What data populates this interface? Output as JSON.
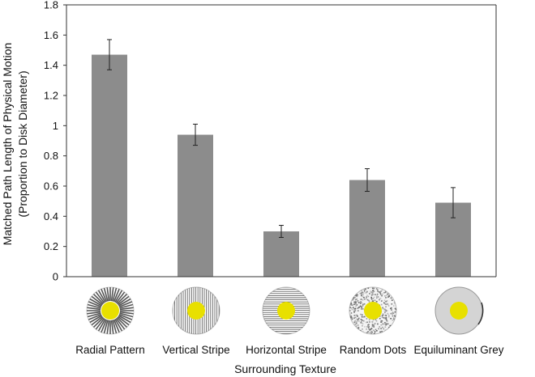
{
  "chart_data": {
    "type": "bar",
    "categories": [
      "Radial Pattern",
      "Vertical Stripe",
      "Horizontal Stripe",
      "Random Dots",
      "Equiluminant Grey"
    ],
    "values": [
      1.47,
      0.94,
      0.3,
      0.64,
      0.49
    ],
    "error": [
      0.1,
      0.07,
      0.04,
      0.075,
      0.1
    ],
    "ylabel_line1": "Matched Path Length of Physical Motion",
    "ylabel_line2": "(Proportion to Disk Diameter)",
    "xlabel": "Surrounding Texture",
    "ylim": [
      0,
      1.8
    ],
    "yticks": [
      0,
      0.2,
      0.4,
      0.6,
      0.8,
      1,
      1.2,
      1.4,
      1.6,
      1.8
    ],
    "grid": false,
    "colors": {
      "bar": "#8c8c8c",
      "error_bar": "#222222",
      "axis": "#333333",
      "disk": "#e8e000",
      "surround_grey": "#d4d4d4"
    },
    "stimulus_icons": [
      "radial-pattern-icon",
      "vertical-stripe-icon",
      "horizontal-stripe-icon",
      "random-dots-icon",
      "equiluminant-grey-icon"
    ]
  }
}
